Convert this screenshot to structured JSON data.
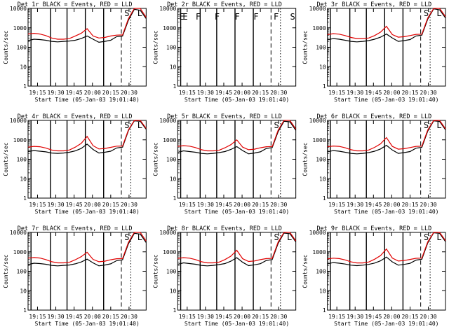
{
  "chart_data": [
    {
      "type": "line",
      "title": "Det 1r BLACK = Events, RED = LLD",
      "xlabel": "Start Time (05-Jan-03 19:01:40)",
      "ylabel": "Counts/sec",
      "xticks": [
        "19:15",
        "19:30",
        "19:45",
        "20:00",
        "20:15",
        "20:30"
      ],
      "yticks": [
        "1",
        "10",
        "100",
        "1000",
        "10000"
      ],
      "ylim": [
        1,
        10000
      ],
      "scale": "log",
      "markers": "S L",
      "has_data": true,
      "series": [
        {
          "name": "Events",
          "color": "#000000",
          "values": [
            220,
            260,
            250,
            230,
            200,
            190,
            200,
            210,
            230,
            280,
            380,
            260,
            180,
            200,
            230,
            350,
            380,
            2500,
            9000,
            8000,
            3000
          ]
        },
        {
          "name": "LLD",
          "color": "#e00000",
          "values": [
            480,
            520,
            480,
            400,
            300,
            260,
            260,
            280,
            380,
            520,
            900,
            380,
            300,
            320,
            380,
            420,
            430,
            3000,
            10000,
            10000,
            3500
          ]
        }
      ]
    },
    {
      "type": "line",
      "title": "Det 2r BLACK = Events, RED = LLD",
      "xlabel": "Start Time (05-Jan-03 19:01:40)",
      "ylabel": "Counts/sec",
      "xticks": [
        "19:15",
        "19:30",
        "19:45",
        "20:00",
        "20:15",
        "20:30"
      ],
      "yticks": [
        "1",
        "10",
        "100",
        "1000",
        "10000"
      ],
      "ylim": [
        1,
        10000
      ],
      "scale": "log",
      "markers": "E F F F F F S E",
      "has_data": false,
      "series": []
    },
    {
      "type": "line",
      "title": "Det 3r BLACK = Events, RED = LLD",
      "xlabel": "Start Time (05-Jan-03 19:01:40)",
      "ylabel": "Counts/sec",
      "xticks": [
        "19:15",
        "19:30",
        "19:45",
        "20:00",
        "20:15",
        "20:30"
      ],
      "yticks": [
        "1",
        "10",
        "100",
        "1000",
        "10000"
      ],
      "ylim": [
        1,
        10000
      ],
      "scale": "log",
      "markers": "S L",
      "has_data": true,
      "series": [
        {
          "name": "Events",
          "color": "#000000",
          "values": [
            240,
            280,
            260,
            230,
            200,
            190,
            200,
            220,
            260,
            330,
            480,
            300,
            200,
            220,
            250,
            380,
            420,
            2800,
            9500,
            8500,
            3200
          ]
        },
        {
          "name": "LLD",
          "color": "#e00000",
          "values": [
            450,
            500,
            470,
            400,
            320,
            280,
            280,
            300,
            400,
            600,
            1200,
            450,
            330,
            350,
            400,
            460,
            470,
            3200,
            10000,
            10000,
            3800
          ]
        }
      ]
    },
    {
      "type": "line",
      "title": "Det 4r BLACK = Events, RED = LLD",
      "xlabel": "Start Time (05-Jan-03 19:01:40)",
      "ylabel": "Counts/sec",
      "xticks": [
        "19:15",
        "19:30",
        "19:45",
        "20:00",
        "20:15",
        "20:30"
      ],
      "yticks": [
        "1",
        "10",
        "100",
        "1000",
        "10000"
      ],
      "ylim": [
        1,
        10000
      ],
      "scale": "log",
      "markers": "S L",
      "has_data": true,
      "series": [
        {
          "name": "Events",
          "color": "#000000",
          "values": [
            250,
            280,
            260,
            240,
            210,
            200,
            210,
            230,
            270,
            360,
            600,
            320,
            210,
            230,
            260,
            380,
            420,
            3000,
            9500,
            9000,
            3500
          ]
        },
        {
          "name": "LLD",
          "color": "#e00000",
          "values": [
            420,
            460,
            440,
            380,
            300,
            270,
            270,
            300,
            420,
            650,
            1500,
            500,
            340,
            360,
            410,
            470,
            480,
            3300,
            10000,
            10000,
            3900
          ]
        }
      ]
    },
    {
      "type": "line",
      "title": "Det 5r BLACK = Events, RED = LLD",
      "xlabel": "Start Time (05-Jan-03 19:01:40)",
      "ylabel": "Counts/sec",
      "xticks": [
        "19:15",
        "19:30",
        "19:45",
        "20:00",
        "20:15",
        "20:30"
      ],
      "yticks": [
        "1",
        "10",
        "100",
        "1000",
        "10000"
      ],
      "ylim": [
        1,
        10000
      ],
      "scale": "log",
      "markers": "S L",
      "has_data": true,
      "series": [
        {
          "name": "Events",
          "color": "#000000",
          "values": [
            230,
            270,
            250,
            230,
            200,
            190,
            200,
            220,
            250,
            320,
            450,
            280,
            190,
            210,
            240,
            360,
            400,
            2600,
            9000,
            8500,
            3100
          ]
        },
        {
          "name": "LLD",
          "color": "#e00000",
          "values": [
            460,
            500,
            470,
            400,
            310,
            270,
            270,
            290,
            390,
            560,
            1000,
            420,
            310,
            330,
            390,
            440,
            450,
            3100,
            10000,
            10000,
            3600
          ]
        }
      ]
    },
    {
      "type": "line",
      "title": "Det 6r BLACK = Events, RED = LLD",
      "xlabel": "Start Time (05-Jan-03 19:01:40)",
      "ylabel": "Counts/sec",
      "xticks": [
        "19:15",
        "19:30",
        "19:45",
        "20:00",
        "20:15",
        "20:30"
      ],
      "yticks": [
        "1",
        "10",
        "100",
        "1000",
        "10000"
      ],
      "ylim": [
        1,
        10000
      ],
      "scale": "log",
      "markers": "S L",
      "has_data": true,
      "series": [
        {
          "name": "Events",
          "color": "#000000",
          "values": [
            240,
            280,
            260,
            230,
            200,
            190,
            200,
            220,
            260,
            340,
            520,
            300,
            200,
            220,
            250,
            370,
            410,
            2800,
            9500,
            8800,
            3300
          ]
        },
        {
          "name": "LLD",
          "color": "#e00000",
          "values": [
            440,
            480,
            460,
            390,
            310,
            270,
            270,
            300,
            410,
            620,
            1300,
            460,
            330,
            350,
            400,
            460,
            470,
            3200,
            10000,
            10000,
            3700
          ]
        }
      ]
    },
    {
      "type": "line",
      "title": "Det 7r BLACK = Events, RED = LLD",
      "xlabel": "Start Time (05-Jan-03 19:01:40)",
      "ylabel": "Counts/sec",
      "xticks": [
        "19:15",
        "19:30",
        "19:45",
        "20:00",
        "20:15",
        "20:30"
      ],
      "yticks": [
        "1",
        "10",
        "100",
        "1000",
        "10000"
      ],
      "ylim": [
        1,
        10000
      ],
      "scale": "log",
      "markers": "S L",
      "has_data": true,
      "series": [
        {
          "name": "Events",
          "color": "#000000",
          "values": [
            220,
            260,
            250,
            230,
            200,
            190,
            200,
            210,
            240,
            300,
            420,
            270,
            190,
            210,
            240,
            350,
            390,
            2600,
            9000,
            8200,
            3000
          ]
        },
        {
          "name": "LLD",
          "color": "#e00000",
          "values": [
            470,
            510,
            480,
            400,
            310,
            270,
            270,
            290,
            390,
            560,
            950,
            410,
            310,
            330,
            390,
            440,
            450,
            3100,
            10000,
            10000,
            3600
          ]
        }
      ]
    },
    {
      "type": "line",
      "title": "Det 8r BLACK = Events, RED = LLD",
      "xlabel": "Start Time (05-Jan-03 19:01:40)",
      "ylabel": "Counts/sec",
      "xticks": [
        "19:15",
        "19:30",
        "19:45",
        "20:00",
        "20:15",
        "20:30"
      ],
      "yticks": [
        "1",
        "10",
        "100",
        "1000",
        "10000"
      ],
      "ylim": [
        1,
        10000
      ],
      "scale": "log",
      "markers": "S L",
      "has_data": true,
      "series": [
        {
          "name": "Events",
          "color": "#000000",
          "values": [
            230,
            270,
            250,
            230,
            200,
            190,
            200,
            220,
            250,
            330,
            500,
            290,
            195,
            215,
            245,
            360,
            400,
            2700,
            9200,
            8600,
            3200
          ]
        },
        {
          "name": "LLD",
          "color": "#e00000",
          "values": [
            460,
            500,
            470,
            400,
            310,
            270,
            270,
            295,
            400,
            600,
            1200,
            440,
            320,
            340,
            395,
            450,
            460,
            3150,
            10000,
            10000,
            3650
          ]
        }
      ]
    },
    {
      "type": "line",
      "title": "Det 9r BLACK = Events, RED = LLD",
      "xlabel": "Start Time (05-Jan-03 19:01:40)",
      "ylabel": "Counts/sec",
      "xticks": [
        "19:15",
        "19:30",
        "19:45",
        "20:00",
        "20:15",
        "20:30"
      ],
      "yticks": [
        "1",
        "10",
        "100",
        "1000",
        "10000"
      ],
      "ylim": [
        1,
        10000
      ],
      "scale": "log",
      "markers": "S L",
      "has_data": true,
      "series": [
        {
          "name": "Events",
          "color": "#000000",
          "values": [
            240,
            280,
            260,
            235,
            205,
            195,
            205,
            225,
            265,
            345,
            540,
            305,
            205,
            225,
            255,
            375,
            415,
            2850,
            9600,
            8900,
            3350
          ]
        },
        {
          "name": "LLD",
          "color": "#e00000",
          "values": [
            430,
            470,
            450,
            385,
            305,
            268,
            268,
            298,
            415,
            635,
            1400,
            480,
            335,
            355,
            405,
            465,
            475,
            3250,
            10000,
            10000,
            3800
          ]
        }
      ]
    }
  ]
}
